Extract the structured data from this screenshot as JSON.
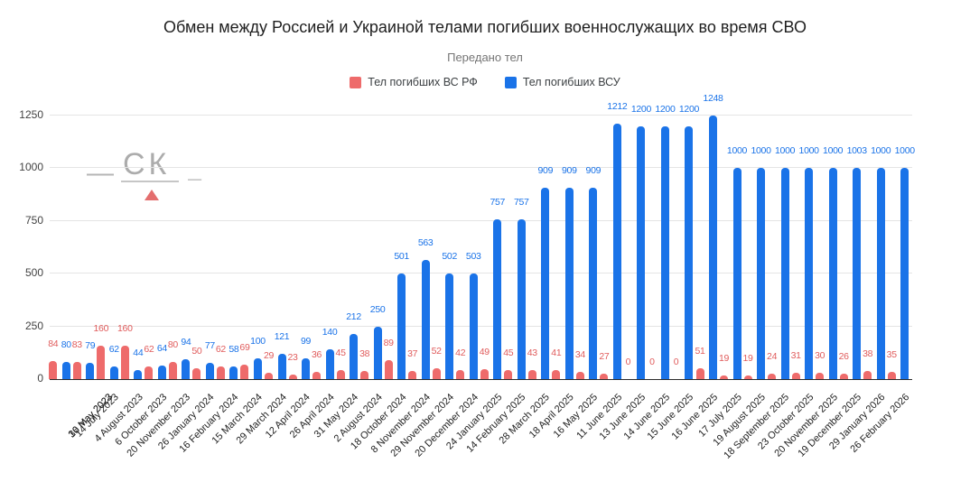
{
  "title": "Обмен между Россией и Украиной телами погибших военнослужащих во время СВО",
  "subtitle": "Передано тел",
  "legend": {
    "items": [
      {
        "label": "Тел погибших ВС РФ",
        "color": "#ee6b6b"
      },
      {
        "label": "Тел погибших ВСУ",
        "color": "#1a73e8"
      }
    ]
  },
  "watermark": {
    "dash": "—",
    "text": "СК",
    "underscore": "_"
  },
  "chart_data": {
    "type": "bar",
    "title": "Обмен между Россией и Украиной телами погибших военнослужащих во время СВО",
    "subtitle": "Передано тел",
    "legend_position": "top",
    "grid": true,
    "value_labels": true,
    "ylim": [
      0,
      1250
    ],
    "yticks": [
      0,
      250,
      500,
      750,
      1000,
      1250
    ],
    "categories": [
      "16 may 2023",
      "30 May 2023",
      "14 July 2023",
      "4 August 2023",
      "6 October 2023",
      "20 November 2023",
      "26 January 2024",
      "16 February 2024",
      "15 March 2024",
      "29 March 2024",
      "12 April 2024",
      "26 April 2024",
      "31 May 2024",
      "2 August 2024",
      "18 October 2024",
      "8 November 2024",
      "29 November 2024",
      "20 December 2024",
      "24 January 2025",
      "14 February 2025",
      "28 March 2025",
      "18 April 2025",
      "16 May 2025",
      "11 June 2025",
      "13 June 2025",
      "14 June 2025",
      "15 June 2025",
      "16 June 2025",
      "17 July 2025",
      "19 August 2025",
      "18 September 2025",
      "23 October 2025",
      "20 November 2025",
      "19 December 2025",
      "29 January 2026",
      "26 February 2026"
    ],
    "series": [
      {
        "name": "Тел погибших ВС РФ",
        "color": "#ee6b6b",
        "label_color": "#e05c5c",
        "values": [
          84,
          83,
          160,
          160,
          62,
          80,
          50,
          62,
          69,
          29,
          23,
          36,
          45,
          38,
          89,
          37,
          52,
          42,
          49,
          45,
          43,
          41,
          34,
          27,
          0,
          0,
          0,
          51,
          19,
          19,
          24,
          31,
          30,
          26,
          38,
          35
        ]
      },
      {
        "name": "Тел погибших ВСУ",
        "color": "#1a73e8",
        "label_color": "#1a73e8",
        "values": [
          80,
          79,
          62,
          44,
          64,
          94,
          77,
          58,
          100,
          121,
          99,
          140,
          212,
          250,
          501,
          563,
          502,
          503,
          757,
          757,
          909,
          909,
          909,
          1212,
          1200,
          1200,
          1200,
          1248,
          1000,
          1000,
          1000,
          1000,
          1000,
          1003,
          1000,
          1000
        ]
      }
    ]
  }
}
